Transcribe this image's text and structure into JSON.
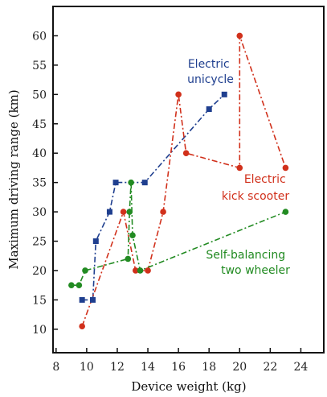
{
  "chart_data": {
    "type": "line",
    "xlabel": "Device weight (kg)",
    "ylabel": "Maximum driving range (km)",
    "xlim": [
      7.8,
      25.5
    ],
    "ylim": [
      6,
      65
    ],
    "xticks": [
      8,
      10,
      12,
      14,
      16,
      18,
      20,
      22,
      24
    ],
    "yticks": [
      10,
      15,
      20,
      25,
      30,
      35,
      40,
      45,
      50,
      55,
      60
    ],
    "grid": false,
    "series": [
      {
        "name": "Electric unicycle",
        "label_lines": [
          "Electric",
          "unicycle"
        ],
        "color": "#1f3f8f",
        "marker": "square",
        "points": [
          [
            9.7,
            15
          ],
          [
            10.4,
            15
          ],
          [
            10.6,
            25
          ],
          [
            11.5,
            30
          ],
          [
            11.9,
            35
          ],
          [
            13.8,
            35
          ],
          [
            18.0,
            47.5
          ],
          [
            19.0,
            50
          ]
        ]
      },
      {
        "name": "Electric kick scooter",
        "label_lines": [
          "Electric",
          "kick scooter"
        ],
        "color": "#d1301b",
        "marker": "circle",
        "points": [
          [
            9.7,
            10.5
          ],
          [
            12.4,
            30
          ],
          [
            13.2,
            20
          ],
          [
            14.0,
            20
          ],
          [
            15.0,
            30
          ],
          [
            16.0,
            50
          ],
          [
            16.5,
            40
          ],
          [
            20.0,
            37.5
          ],
          [
            20.0,
            60
          ],
          [
            23.0,
            37.5
          ]
        ]
      },
      {
        "name": "Self-balancing two wheeler",
        "label_lines": [
          "Self-balancing",
          "two wheeler"
        ],
        "color": "#228b22",
        "marker": "circle",
        "points": [
          [
            9.0,
            17.5
          ],
          [
            9.5,
            17.5
          ],
          [
            9.9,
            20
          ],
          [
            12.7,
            22
          ],
          [
            12.8,
            30
          ],
          [
            12.9,
            35
          ],
          [
            13.0,
            26
          ],
          [
            13.5,
            20
          ],
          [
            23.0,
            30
          ]
        ]
      }
    ]
  }
}
